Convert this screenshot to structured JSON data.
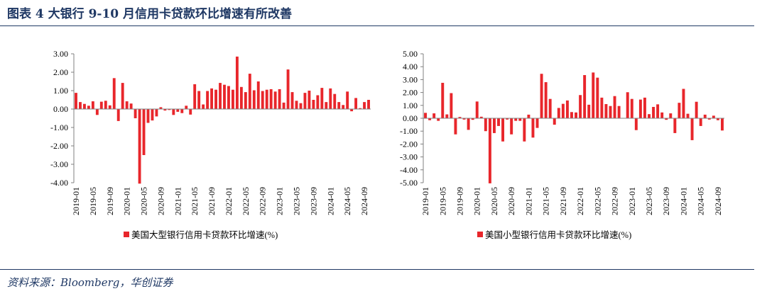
{
  "header": {
    "title": "图表 4   大银行 9-10 月信用卡贷款环比增速有所改善"
  },
  "footer": {
    "source": "资料来源：Bloomberg，华创证券"
  },
  "colors": {
    "bar": "#e8262b",
    "title": "#1f3864",
    "rule": "#1f3864"
  },
  "chart_data": [
    {
      "type": "bar",
      "title": "",
      "legend": "美国大型银行信用卡贷款环比增速(%)",
      "legend_position": "bottom",
      "ylim": [
        -4,
        3
      ],
      "yticks": [
        3,
        2,
        1,
        0,
        -1,
        -2,
        -3,
        -4
      ],
      "ytick_labels": [
        "3.00",
        "2.00",
        "1.00",
        "0.00",
        "-1.00",
        "-2.00",
        "-3.00",
        "-4.00"
      ],
      "x_labels": [
        "2019-01",
        "2019-05",
        "2019-09",
        "2020-01",
        "2020-05",
        "2020-09",
        "2021-01",
        "2021-05",
        "2021-09",
        "2022-01",
        "2022-05",
        "2022-09",
        "2023-01",
        "2023-05",
        "2023-09",
        "2024-01",
        "2024-05",
        "2024-09"
      ],
      "values": [
        0.88,
        0.38,
        0.28,
        0.18,
        0.42,
        -0.32,
        0.4,
        0.45,
        0.2,
        1.68,
        -0.65,
        1.42,
        0.42,
        0.3,
        -0.5,
        -4.05,
        -2.5,
        -0.75,
        -0.62,
        -0.4,
        0.1,
        -0.08,
        -0.05,
        -0.32,
        -0.15,
        -0.22,
        0.18,
        -0.3,
        1.35,
        0.98,
        0.25,
        0.98,
        1.12,
        1.05,
        1.42,
        1.32,
        1.25,
        1.05,
        2.85,
        1.2,
        0.92,
        1.92,
        1.02,
        1.5,
        0.98,
        1.05,
        1.08,
        0.95,
        1.08,
        0.35,
        2.15,
        0.92,
        0.45,
        0.32,
        0.88,
        1.0,
        0.5,
        0.75,
        1.15,
        0.38,
        1.12,
        0.82,
        0.38,
        0.22,
        0.95,
        -0.12,
        0.6,
        0.05,
        0.38,
        0.5
      ]
    },
    {
      "type": "bar",
      "title": "",
      "legend": "美国小型银行信用卡贷款环比增速(%)",
      "legend_position": "bottom",
      "ylim": [
        -5,
        5
      ],
      "yticks": [
        5,
        4,
        3,
        2,
        1,
        0,
        -1,
        -2,
        -3,
        -4,
        -5
      ],
      "ytick_labels": [
        "5.00",
        "4.00",
        "3.00",
        "2.00",
        "1.00",
        "0.00",
        "-1.00",
        "-2.00",
        "-3.00",
        "-4.00",
        "-5.00"
      ],
      "x_labels": [
        "2019-01",
        "2019-05",
        "2019-09",
        "2020-01",
        "2020-05",
        "2020-09",
        "2021-01",
        "2021-05",
        "2021-09",
        "2022-01",
        "2022-05",
        "2022-09",
        "2023-01",
        "2023-05",
        "2023-09",
        "2024-01",
        "2024-05",
        "2024-09"
      ],
      "values": [
        0.42,
        -0.15,
        0.38,
        -0.2,
        2.75,
        0.3,
        1.95,
        -1.25,
        0.1,
        -0.1,
        -0.9,
        -0.12,
        1.3,
        0.12,
        -1.0,
        -5.05,
        -1.15,
        -0.6,
        -1.8,
        -0.1,
        -1.25,
        -0.2,
        -0.2,
        -1.8,
        0.28,
        -1.5,
        -0.75,
        3.45,
        2.8,
        1.5,
        -0.5,
        0.8,
        1.12,
        1.38,
        0.48,
        0.45,
        1.8,
        3.35,
        1.05,
        3.55,
        3.15,
        1.6,
        1.1,
        0.95,
        1.72,
        0.95,
        0.02,
        2.02,
        1.5,
        -0.92,
        1.45,
        1.6,
        0.32,
        0.88,
        1.08,
        0.45,
        -0.12,
        0.38,
        -1.15,
        1.2,
        2.28,
        0.35,
        -1.7,
        1.28,
        -0.6,
        0.28,
        -0.1,
        0.2,
        -0.15,
        -0.95
      ]
    }
  ]
}
